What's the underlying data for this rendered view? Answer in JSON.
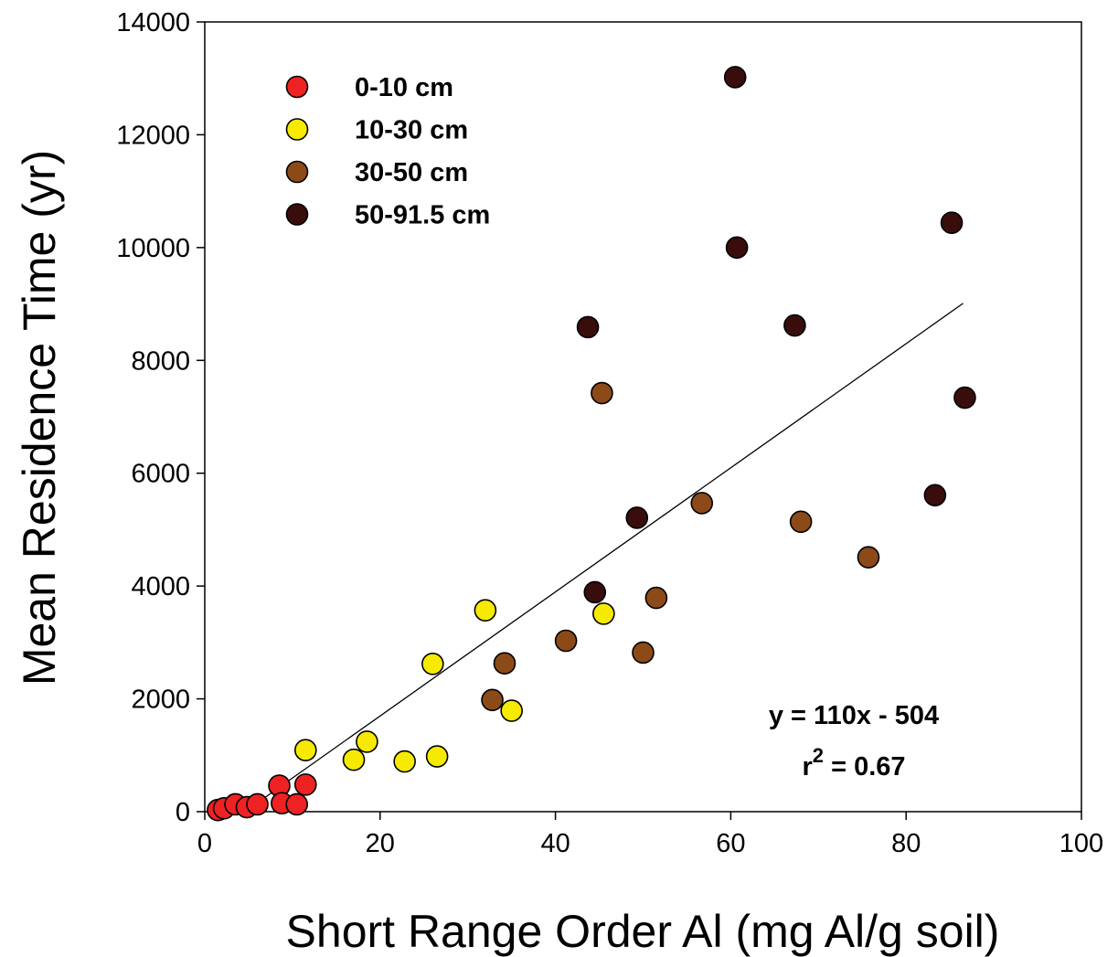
{
  "chart_data": {
    "type": "scatter",
    "title": "",
    "xlabel": "Short Range Order Al (mg Al/g soil)",
    "ylabel": "Mean Residence Time (yr)",
    "xlim": [
      0,
      100
    ],
    "ylim": [
      0,
      14000
    ],
    "x_ticks": [
      "0",
      "20",
      "40",
      "60",
      "80",
      "100"
    ],
    "y_ticks": [
      "0",
      "2000",
      "4000",
      "6000",
      "8000",
      "10000",
      "12000",
      "14000"
    ],
    "grid": false,
    "legend_position": "top-left",
    "series": [
      {
        "name": "0-10 cm",
        "color": "#ee2222",
        "points": [
          [
            1.5,
            30
          ],
          [
            2.2,
            60
          ],
          [
            3.5,
            130
          ],
          [
            4.8,
            80
          ],
          [
            6.0,
            130
          ],
          [
            8.5,
            460
          ],
          [
            8.8,
            150
          ],
          [
            10.5,
            130
          ],
          [
            11.5,
            480
          ]
        ]
      },
      {
        "name": "10-30 cm",
        "color": "#f5ea00",
        "points": [
          [
            11.5,
            1090
          ],
          [
            17.0,
            920
          ],
          [
            18.5,
            1240
          ],
          [
            22.8,
            890
          ],
          [
            26.0,
            2620
          ],
          [
            26.5,
            980
          ],
          [
            32.0,
            3570
          ],
          [
            35.0,
            1790
          ],
          [
            45.5,
            3510
          ]
        ]
      },
      {
        "name": "30-50 cm",
        "color": "#8b4a18",
        "points": [
          [
            32.8,
            1980
          ],
          [
            34.2,
            2630
          ],
          [
            41.2,
            3030
          ],
          [
            45.3,
            7420
          ],
          [
            50.0,
            2820
          ],
          [
            51.5,
            3790
          ],
          [
            56.7,
            5470
          ],
          [
            68.0,
            5140
          ],
          [
            75.7,
            4510
          ]
        ]
      },
      {
        "name": "50-91.5 cm",
        "color": "#3a0d0d",
        "points": [
          [
            43.7,
            8590
          ],
          [
            44.5,
            3890
          ],
          [
            49.3,
            5210
          ],
          [
            60.5,
            13020
          ],
          [
            60.7,
            10000
          ],
          [
            67.3,
            8620
          ],
          [
            83.3,
            5610
          ],
          [
            85.2,
            10440
          ],
          [
            86.7,
            7340
          ]
        ]
      }
    ],
    "regression": {
      "slope": 110,
      "intercept": -504,
      "x_range": [
        4.8,
        86.5
      ]
    },
    "annotations": {
      "equation": "y = 110x - 504",
      "r2_prefix": "r",
      "r2_sup": "2",
      "r2_value": " = 0.67"
    }
  }
}
